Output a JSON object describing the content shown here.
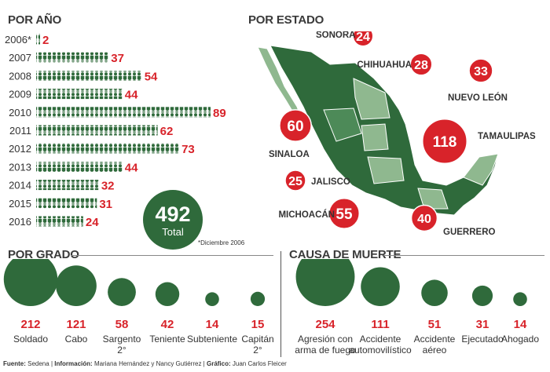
{
  "colors": {
    "green": "#2f6a3b",
    "green_mid": "#4d8a58",
    "green_light": "#8fb88f",
    "red": "#d8232a",
    "text": "#333333"
  },
  "sections": {
    "by_year": "POR AÑO",
    "by_state": "POR ESTADO",
    "by_rank": "POR GRADO",
    "by_cause": "CAUSA DE MUERTE"
  },
  "total": {
    "value": "492",
    "label": "Total"
  },
  "footnote": "*Diciembre 2006",
  "footer": {
    "fuente_label": "Fuente:",
    "fuente": "Sedena",
    "info_label": "Información:",
    "info": "Mariana Hernández y Nancy Gutiérrez",
    "grafico_label": "Gráfico:",
    "grafico": "Juan Carlos Fleicer"
  },
  "chart_data": [
    {
      "type": "bar",
      "title": "POR AÑO",
      "categories": [
        "2006*",
        "2007",
        "2008",
        "2009",
        "2010",
        "2011",
        "2012",
        "2013",
        "2014",
        "2015",
        "2016"
      ],
      "values": [
        2,
        37,
        54,
        44,
        89,
        62,
        73,
        44,
        32,
        31,
        24
      ]
    },
    {
      "type": "map",
      "title": "POR ESTADO",
      "categories": [
        "SONORA",
        "CHIHUAHUA",
        "NUEVO LEÓN",
        "SINALOA",
        "TAMAULIPAS",
        "JALISCO",
        "MICHOACÁN",
        "GUERRERO"
      ],
      "values": [
        24,
        28,
        33,
        60,
        118,
        25,
        55,
        40
      ]
    },
    {
      "type": "bubble",
      "title": "POR GRADO",
      "categories": [
        "Soldado",
        "Cabo",
        "Sargento 2°",
        "Teniente",
        "Subteniente",
        "Capitán 2°"
      ],
      "values": [
        212,
        121,
        58,
        42,
        14,
        15
      ]
    },
    {
      "type": "bubble",
      "title": "CAUSA DE MUERTE",
      "categories": [
        "Agresión con arma de fuego",
        "Accidente automovilístico",
        "Accidente aéreo",
        "Ejecutado",
        "Ahogado"
      ],
      "values": [
        254,
        111,
        51,
        31,
        14
      ]
    }
  ]
}
